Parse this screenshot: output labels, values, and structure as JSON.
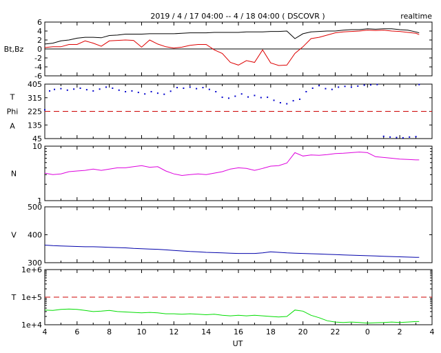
{
  "header": {
    "title": "2019 / 4 / 17  04:00 --  4 / 18  04:00 ( DSCOVR )",
    "mode": "realtime"
  },
  "xaxis": {
    "label": "UT",
    "ticks": [
      "4",
      "6",
      "8",
      "10",
      "12",
      "14",
      "16",
      "18",
      "20",
      "22",
      "0",
      "2",
      "4"
    ]
  },
  "chart_data": [
    {
      "type": "line",
      "name": "magnetic field",
      "ylabel": "Bt,Bz",
      "ylim": [
        -6,
        6
      ],
      "yticks": [
        "6",
        "4",
        "2",
        "0",
        "-2",
        "-4",
        "-6"
      ],
      "zero_line": true,
      "colors": {
        "Bt": "#000000",
        "Bz": "#dd0000"
      },
      "x": [
        4,
        4.5,
        5,
        5.5,
        6,
        6.5,
        7,
        7.5,
        8,
        8.5,
        9,
        9.5,
        10,
        10.5,
        11,
        11.5,
        12,
        12.5,
        13,
        13.5,
        14,
        14.5,
        15,
        15.5,
        16,
        16.5,
        17,
        17.5,
        18,
        18.5,
        19,
        19.5,
        20,
        20.5,
        21,
        21.5,
        22,
        22.5,
        23,
        23.5,
        24,
        24.5,
        25,
        25.5,
        26,
        26.5,
        27,
        27.2
      ],
      "series": [
        {
          "key": "Bt",
          "values": [
            1.1,
            1.3,
            1.8,
            2.0,
            2.4,
            2.6,
            2.6,
            2.5,
            3.0,
            3.1,
            3.3,
            3.3,
            3.3,
            3.4,
            3.4,
            3.4,
            3.4,
            3.5,
            3.6,
            3.6,
            3.6,
            3.7,
            3.7,
            3.7,
            3.7,
            3.8,
            3.8,
            3.8,
            3.9,
            3.9,
            4.0,
            2.3,
            3.4,
            3.8,
            3.9,
            4.0,
            4.0,
            4.2,
            4.3,
            4.3,
            4.5,
            4.4,
            4.5,
            4.5,
            4.3,
            4.2,
            3.8,
            3.6
          ]
        },
        {
          "key": "Bz",
          "values": [
            0.3,
            0.5,
            0.5,
            1.0,
            1.0,
            1.8,
            1.3,
            0.6,
            1.8,
            1.9,
            2.0,
            1.9,
            0.4,
            2.0,
            1.1,
            0.5,
            0.2,
            0.4,
            0.8,
            1.0,
            1.0,
            -0.2,
            -1.0,
            -3.0,
            -3.6,
            -2.6,
            -3.0,
            -0.2,
            -3.1,
            -3.7,
            -3.6,
            -1.0,
            0.5,
            2.3,
            2.6,
            3.1,
            3.6,
            3.8,
            3.9,
            4.0,
            4.2,
            4.1,
            4.2,
            4.0,
            3.9,
            3.7,
            3.5,
            3.2
          ]
        }
      ]
    },
    {
      "type": "scatter",
      "name": "field direction",
      "ylabel_lines": [
        "T",
        "Phi",
        "A"
      ],
      "ylim": [
        45,
        405
      ],
      "yticks": [
        "405",
        "315",
        "225",
        "135",
        "45"
      ],
      "reference_line": 225,
      "colors": {
        "points": "#0000cc",
        "reference": "#cc0000"
      },
      "x": [
        4,
        4.3,
        4.6,
        5,
        5.4,
        5.8,
        6.2,
        6.6,
        7,
        7.4,
        7.8,
        8.2,
        8.6,
        9,
        9.4,
        9.8,
        10.2,
        10.6,
        11,
        11.4,
        11.8,
        12.2,
        12.6,
        13,
        13.4,
        13.8,
        14.2,
        14.6,
        15,
        15.4,
        15.8,
        16.2,
        16.6,
        17,
        17.4,
        17.8,
        18.2,
        18.6,
        19,
        19.4,
        19.8,
        20.2,
        20.6,
        21,
        21.4,
        21.8,
        22.2,
        22.6,
        23,
        23.4,
        23.8,
        24.2,
        24.6,
        25,
        25.4,
        25.8,
        26.2,
        26.6,
        27,
        27.2
      ],
      "values": [
        235,
        360,
        370,
        375,
        365,
        372,
        378,
        368,
        360,
        372,
        385,
        378,
        365,
        355,
        360,
        350,
        340,
        355,
        345,
        338,
        358,
        382,
        378,
        385,
        375,
        382,
        370,
        355,
        318,
        312,
        325,
        340,
        320,
        330,
        316,
        318,
        298,
        282,
        275,
        295,
        305,
        355,
        378,
        395,
        375,
        370,
        385,
        390,
        385,
        392,
        398,
        400,
        402,
        60,
        55,
        52,
        50,
        55,
        58,
        402
      ]
    },
    {
      "type": "line",
      "name": "density",
      "ylabel": "N",
      "ylim": [
        1,
        10
      ],
      "log_scale": true,
      "yticks": [
        "10",
        "1"
      ],
      "colors": {
        "line": "#dd00dd"
      },
      "x": [
        4,
        4.5,
        5,
        5.5,
        6,
        6.5,
        7,
        7.5,
        8,
        8.5,
        9,
        9.5,
        10,
        10.5,
        11,
        11.5,
        12,
        12.5,
        13,
        13.5,
        14,
        14.5,
        15,
        15.5,
        16,
        16.5,
        17,
        17.5,
        18,
        18.5,
        19,
        19.5,
        20,
        20.5,
        21,
        21.5,
        22,
        22.5,
        23,
        23.5,
        24,
        24.5,
        25,
        25.5,
        26,
        26.5,
        27,
        27.2
      ],
      "values": [
        3.2,
        3.0,
        3.1,
        3.4,
        3.5,
        3.6,
        3.8,
        3.6,
        3.8,
        4.0,
        4.0,
        4.2,
        4.4,
        4.1,
        4.2,
        3.5,
        3.1,
        2.9,
        3.0,
        3.1,
        3.0,
        3.2,
        3.4,
        3.8,
        4.0,
        3.9,
        3.6,
        3.9,
        4.3,
        4.4,
        4.9,
        7.6,
        6.6,
        6.9,
        6.8,
        7.0,
        7.3,
        7.4,
        7.6,
        7.8,
        7.6,
        6.4,
        6.2,
        6.0,
        5.8,
        5.7,
        5.6,
        5.6
      ]
    },
    {
      "type": "line",
      "name": "speed",
      "ylabel": "V",
      "ylim": [
        300,
        500
      ],
      "yticks": [
        "500",
        "400",
        "300"
      ],
      "colors": {
        "line": "#0000aa"
      },
      "x": [
        4,
        4.5,
        5,
        5.5,
        6,
        6.5,
        7,
        7.5,
        8,
        8.5,
        9,
        9.5,
        10,
        10.5,
        11,
        11.5,
        12,
        12.5,
        13,
        13.5,
        14,
        14.5,
        15,
        15.5,
        16,
        16.5,
        17,
        17.5,
        18,
        18.5,
        19,
        19.5,
        20,
        20.5,
        21,
        21.5,
        22,
        22.5,
        23,
        23.5,
        24,
        24.5,
        25,
        25.5,
        26,
        26.5,
        27,
        27.2
      ],
      "values": [
        363,
        361,
        360,
        359,
        358,
        357,
        357,
        356,
        355,
        354,
        353,
        351,
        350,
        349,
        348,
        346,
        344,
        342,
        340,
        339,
        337,
        336,
        335,
        334,
        333,
        333,
        333,
        335,
        339,
        337,
        335,
        334,
        333,
        332,
        331,
        330,
        329,
        328,
        327,
        326,
        325,
        324,
        323,
        322,
        321,
        320,
        319,
        319
      ]
    },
    {
      "type": "line",
      "name": "temperature",
      "ylabel": "T",
      "ylim": [
        10000,
        1000000
      ],
      "log_scale": true,
      "yticks": [
        "1e+6",
        "1e+5",
        "1e+4"
      ],
      "reference_line": 100000,
      "colors": {
        "line": "#00dd00",
        "reference": "#cc0000"
      },
      "x": [
        4,
        4.5,
        5,
        5.5,
        6,
        6.5,
        7,
        7.5,
        8,
        8.5,
        9,
        9.5,
        10,
        10.5,
        11,
        11.5,
        12,
        12.5,
        13,
        13.5,
        14,
        14.5,
        15,
        15.5,
        16,
        16.5,
        17,
        17.5,
        18,
        18.5,
        19,
        19.5,
        20,
        20.5,
        21,
        21.5,
        22,
        22.5,
        23,
        23.5,
        24,
        24.5,
        25,
        25.5,
        26,
        26.5,
        27,
        27.2
      ],
      "values": [
        34000,
        33000,
        36000,
        37000,
        36000,
        33000,
        30000,
        31000,
        33000,
        30000,
        29000,
        28000,
        27000,
        28000,
        27000,
        25000,
        25000,
        24000,
        25000,
        24000,
        23000,
        24000,
        22000,
        21000,
        22000,
        21000,
        22000,
        21000,
        20000,
        19000,
        20000,
        34000,
        31000,
        22000,
        18000,
        14000,
        12500,
        12000,
        12500,
        12000,
        11500,
        11800,
        12000,
        12500,
        12000,
        12500,
        13000,
        13000
      ]
    }
  ]
}
